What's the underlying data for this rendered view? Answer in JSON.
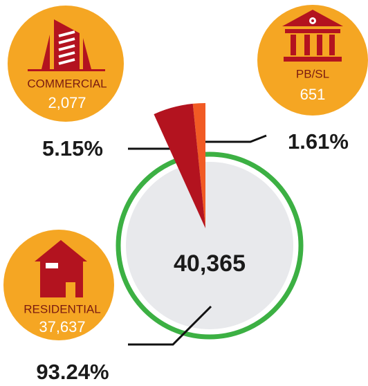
{
  "chart_data": {
    "type": "pie",
    "categories": [
      "RESIDENTIAL",
      "COMMERCIAL",
      "PB/SL"
    ],
    "values": [
      93.24,
      5.15,
      1.61
    ],
    "value_labels": [
      "93.24%",
      "5.15%",
      "1.61%"
    ],
    "counts": [
      {
        "value": 37637,
        "label": "37,637"
      },
      {
        "value": 2077,
        "label": "2,077"
      },
      {
        "value": 651,
        "label": "651"
      }
    ],
    "colors": [
      "#e8e9ec",
      "#b3131f",
      "#f15a24"
    ],
    "total": {
      "value": 40365,
      "label": "40,365"
    }
  }
}
